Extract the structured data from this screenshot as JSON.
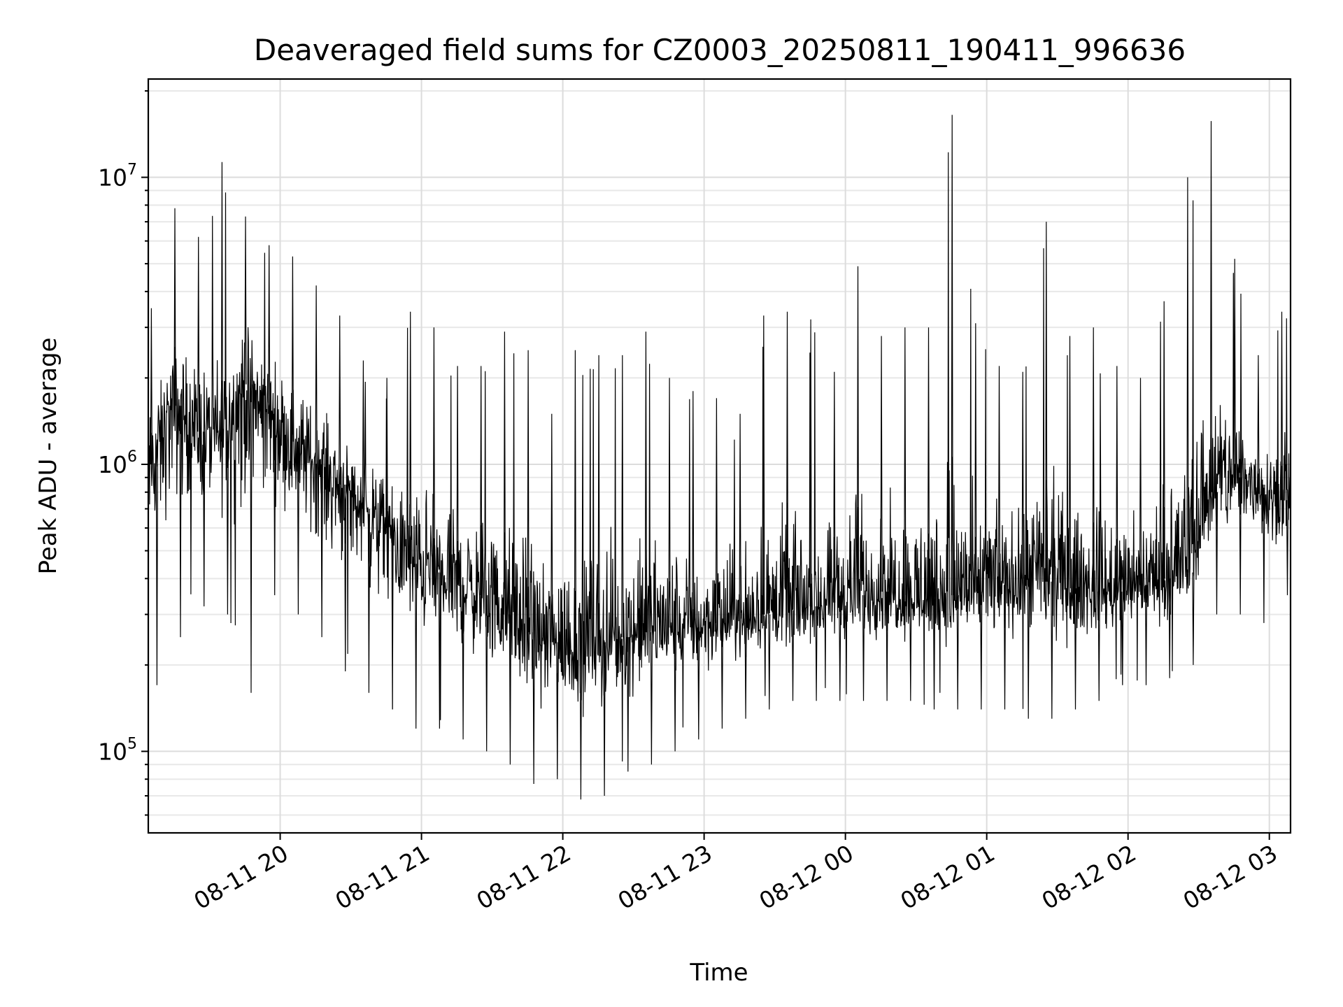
{
  "chart_data": {
    "type": "line",
    "title": "Deaveraged field sums for CZ0003_20250811_190411_996636",
    "xlabel": "Time",
    "ylabel": "Peak ADU - average",
    "yscale": "log",
    "xlim": [
      "2025-08-11 19:04",
      "2025-08-12 03:09"
    ],
    "ylim": [
      52000,
      22000000
    ],
    "grid": true,
    "x_ticks": [
      "08-11 20",
      "08-11 21",
      "08-11 22",
      "08-11 23",
      "08-12 00",
      "08-12 01",
      "08-12 02",
      "08-12 03"
    ],
    "y_ticks": [
      {
        "base": "10",
        "exp": "5",
        "value": 100000
      },
      {
        "base": "10",
        "exp": "6",
        "value": 1000000
      },
      {
        "base": "10",
        "exp": "7",
        "value": 10000000
      }
    ],
    "series": [
      {
        "color": "#000000",
        "x": [
          "2025-08-11 19:05",
          "2025-08-11 19:15",
          "2025-08-11 19:25",
          "2025-08-11 19:35",
          "2025-08-11 19:45",
          "2025-08-11 19:55",
          "2025-08-11 20:05",
          "2025-08-11 20:15",
          "2025-08-11 20:25",
          "2025-08-11 20:35",
          "2025-08-11 20:45",
          "2025-08-11 20:55",
          "2025-08-11 21:05",
          "2025-08-11 21:15",
          "2025-08-11 21:25",
          "2025-08-11 21:35",
          "2025-08-11 21:45",
          "2025-08-11 21:55",
          "2025-08-11 22:05",
          "2025-08-11 22:15",
          "2025-08-11 22:25",
          "2025-08-11 22:35",
          "2025-08-11 22:45",
          "2025-08-11 22:55",
          "2025-08-11 23:05",
          "2025-08-11 23:15",
          "2025-08-11 23:25",
          "2025-08-11 23:35",
          "2025-08-11 23:45",
          "2025-08-11 23:55",
          "2025-08-12 00:05",
          "2025-08-12 00:15",
          "2025-08-12 00:25",
          "2025-08-12 00:35",
          "2025-08-12 00:45",
          "2025-08-12 00:55",
          "2025-08-12 01:05",
          "2025-08-12 01:15",
          "2025-08-12 01:25",
          "2025-08-12 01:35",
          "2025-08-12 01:45",
          "2025-08-12 01:55",
          "2025-08-12 02:05",
          "2025-08-12 02:15",
          "2025-08-12 02:25",
          "2025-08-12 02:35",
          "2025-08-12 02:45",
          "2025-08-12 02:55",
          "2025-08-12 03:05"
        ],
        "y": [
          1000000,
          1600000,
          1300000,
          1200000,
          1900000,
          1500000,
          1200000,
          1000000,
          850000,
          700000,
          600000,
          450000,
          420000,
          380000,
          350000,
          300000,
          260000,
          240000,
          230000,
          240000,
          250000,
          260000,
          270000,
          270000,
          280000,
          290000,
          300000,
          310000,
          320000,
          330000,
          350000,
          360000,
          350000,
          340000,
          350000,
          360000,
          380000,
          400000,
          390000,
          370000,
          360000,
          360000,
          380000,
          400000,
          420000,
          800000,
          900000,
          850000,
          750000
        ],
        "y_min": [
          170000,
          250000,
          320000,
          300000,
          160000,
          350000,
          300000,
          250000,
          190000,
          160000,
          140000,
          120000,
          120000,
          110000,
          100000,
          90000,
          77000,
          80000,
          68000,
          70000,
          85000,
          90000,
          100000,
          110000,
          120000,
          130000,
          140000,
          150000,
          150000,
          150000,
          150000,
          150000,
          150000,
          140000,
          140000,
          140000,
          140000,
          130000,
          130000,
          140000,
          150000,
          170000,
          170000,
          180000,
          200000,
          300000,
          300000,
          280000,
          350000
        ],
        "y_max": [
          3500000,
          7800000,
          6200000,
          11300000,
          7300000,
          5800000,
          5300000,
          4200000,
          3300000,
          2300000,
          2000000,
          3400000,
          3000000,
          2200000,
          2200000,
          2900000,
          2500000,
          1500000,
          2500000,
          2400000,
          2400000,
          2900000,
          2000000,
          1800000,
          1700000,
          1500000,
          3300000,
          3400000,
          3200000,
          2100000,
          4900000,
          2800000,
          3000000,
          3000000,
          16500000,
          3100000,
          2200000,
          2100000,
          7000000,
          2800000,
          3000000,
          2200000,
          2000000,
          3700000,
          10000000,
          15700000,
          5200000,
          2400000,
          3400000
        ]
      }
    ]
  }
}
